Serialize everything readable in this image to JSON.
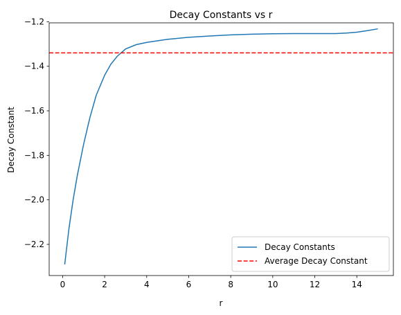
{
  "chart_data": {
    "type": "line",
    "title": "Decay Constants vs r",
    "xlabel": "r",
    "ylabel": "Decay Constant",
    "xlim": [
      -0.64,
      15.74
    ],
    "ylim": [
      -2.34,
      -1.205
    ],
    "xticks": [
      0,
      2,
      4,
      6,
      8,
      10,
      12,
      14
    ],
    "yticks": [
      -2.2,
      -2.0,
      -1.8,
      -1.6,
      -1.4,
      -1.2
    ],
    "grid": false,
    "legend": "lower-right",
    "series": [
      {
        "name": "Decay Constants",
        "color": "#1f77b4",
        "style": "solid",
        "x": [
          0.1,
          0.3,
          0.5,
          0.7,
          1.0,
          1.3,
          1.6,
          2.0,
          2.3,
          2.6,
          3.0,
          3.5,
          4.0,
          5.0,
          6.0,
          7.0,
          8.0,
          9.0,
          10.0,
          11.0,
          12.0,
          13.0,
          13.5,
          14.0,
          14.5,
          15.0
        ],
        "y": [
          -2.29,
          -2.13,
          -2.0,
          -1.89,
          -1.75,
          -1.63,
          -1.53,
          -1.44,
          -1.39,
          -1.355,
          -1.322,
          -1.303,
          -1.293,
          -1.279,
          -1.27,
          -1.264,
          -1.259,
          -1.256,
          -1.254,
          -1.253,
          -1.253,
          -1.253,
          -1.251,
          -1.247,
          -1.24,
          -1.232
        ]
      },
      {
        "name": "Average Decay Constant",
        "color": "#ff0000",
        "style": "dashed",
        "x": [
          -0.64,
          15.74
        ],
        "y": [
          -1.34,
          -1.34
        ]
      }
    ]
  }
}
